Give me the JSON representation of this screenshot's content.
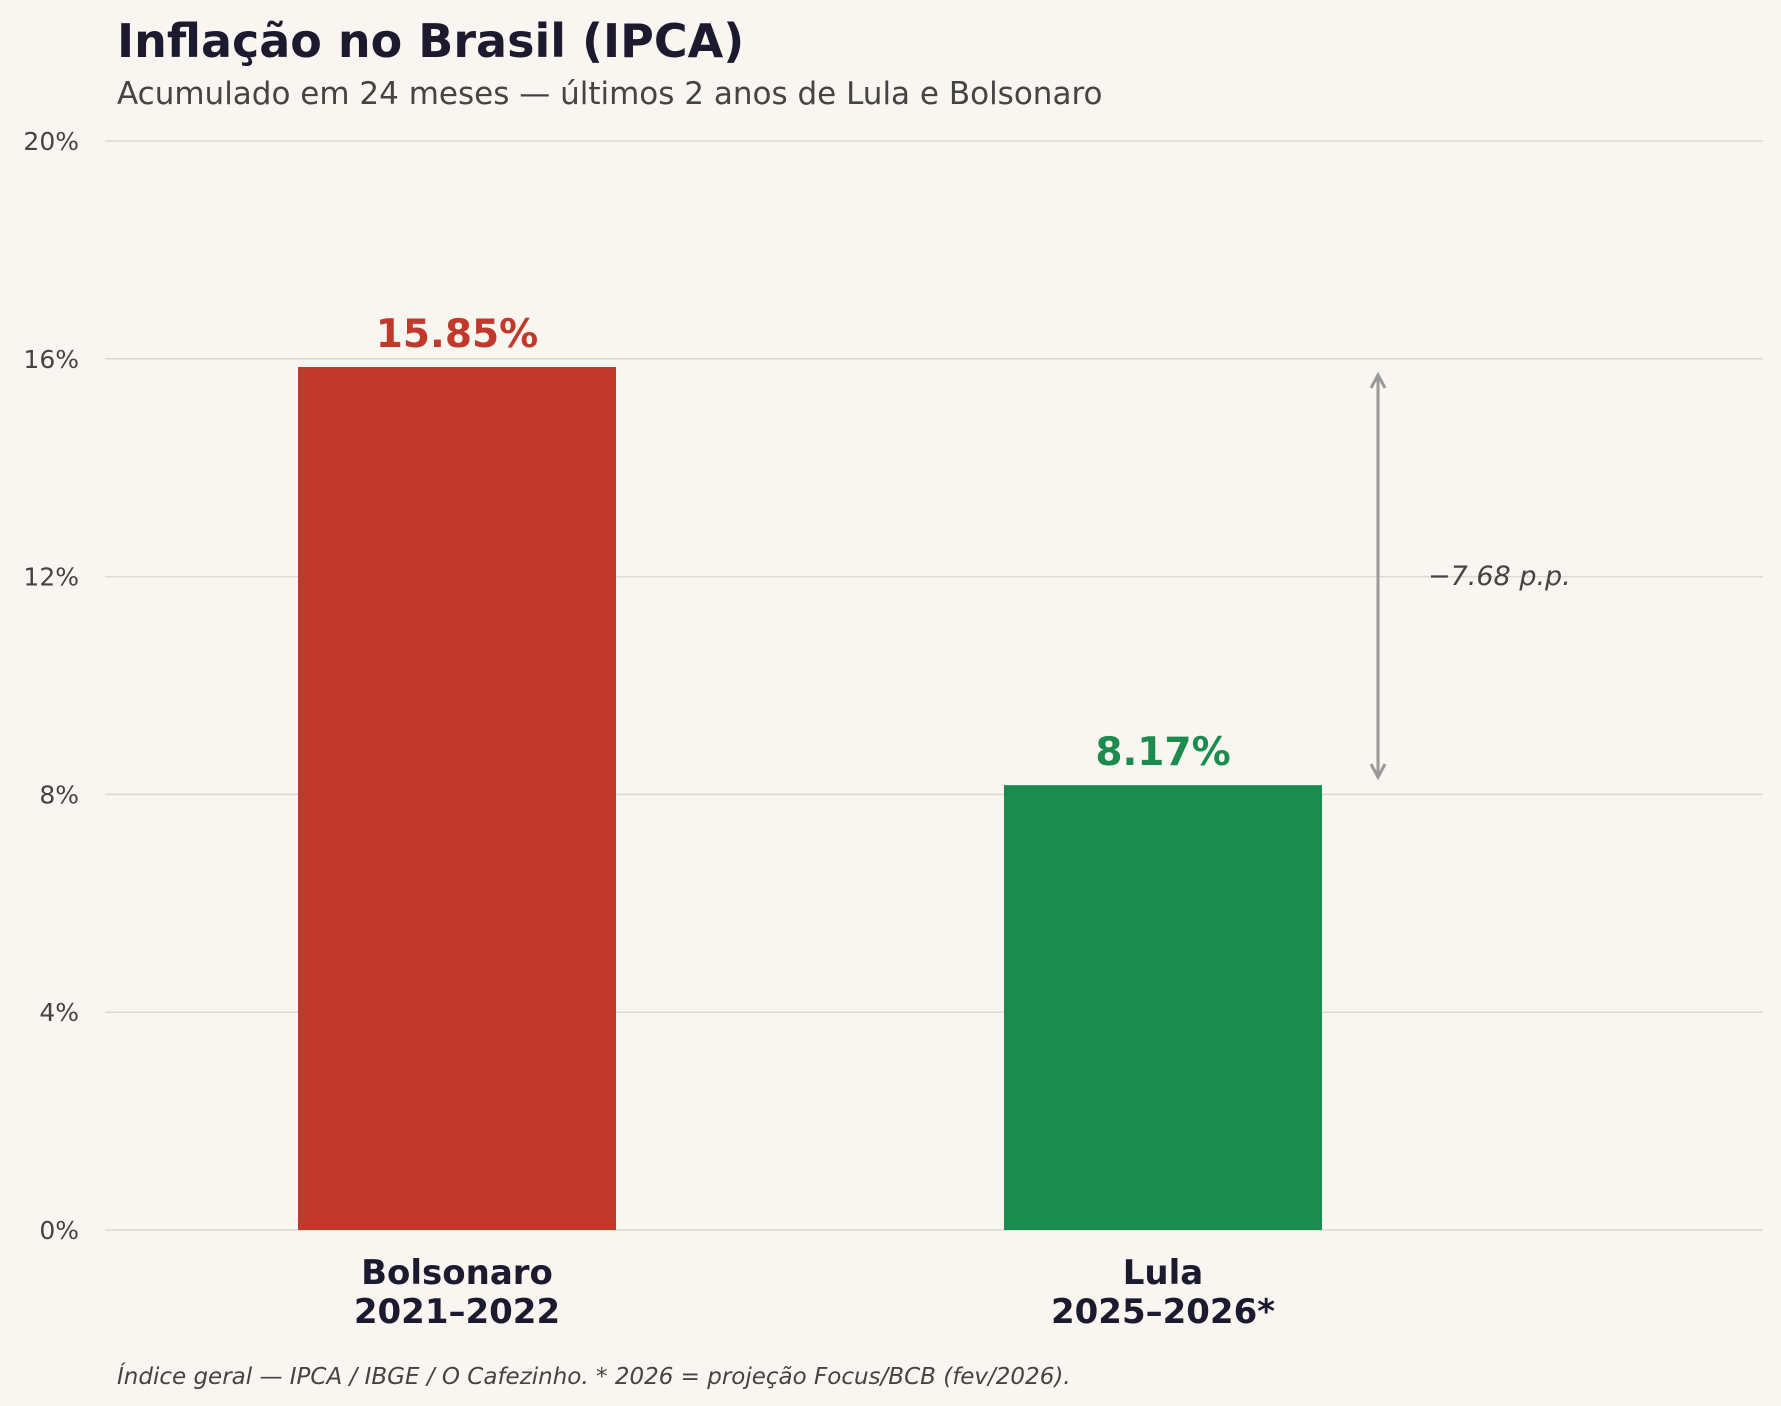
{
  "chart_data": {
    "type": "bar",
    "title": "Inflação no Brasil (IPCA)",
    "subtitle": "Acumulado em 24 meses — últimos 2 anos de Lula e Bolsonaro",
    "categories": [
      {
        "name": "Bolsonaro",
        "period": "2021–2022"
      },
      {
        "name": "Lula",
        "period": "2025–2026*"
      }
    ],
    "values": [
      15.85,
      8.17
    ],
    "value_labels": [
      "15.85%",
      "8.17%"
    ],
    "colors": [
      "#c0392b",
      "#1b8c4e"
    ],
    "ylim": [
      0,
      20
    ],
    "yticks": [
      0,
      4,
      8,
      12,
      16,
      20
    ],
    "ytick_labels": [
      "0%",
      "4%",
      "8%",
      "12%",
      "16%",
      "20%"
    ],
    "grid": true,
    "annotation": {
      "text": "−7.68 p.p.",
      "from": 15.85,
      "to": 8.17
    },
    "footer": "Índice geral — IPCA / IBGE / O Cafezinho.   * 2026 = projeção Focus/BCB (fev/2026).",
    "xlabel": "",
    "ylabel": ""
  }
}
